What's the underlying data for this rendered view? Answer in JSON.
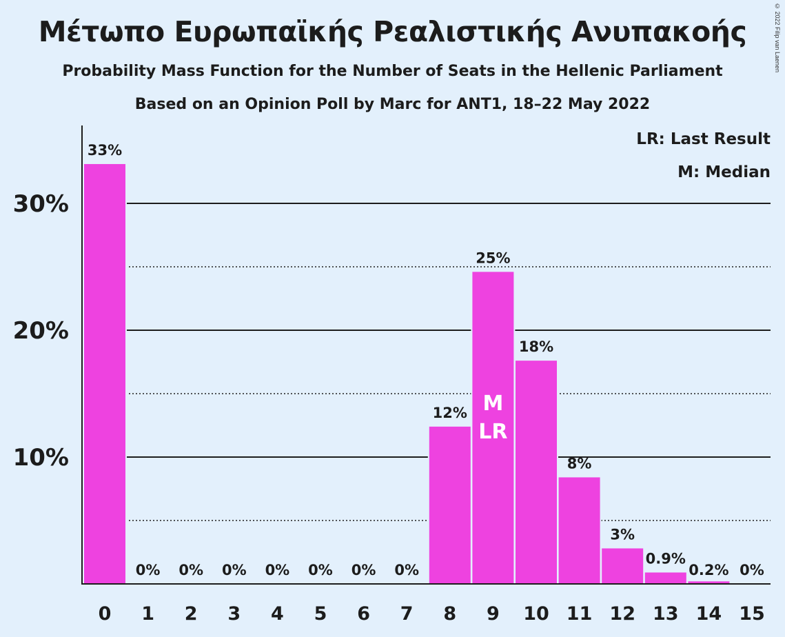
{
  "title": "Μέτωπο Ευρωπαϊκής Ρεαλιστικής Ανυπακοής",
  "subtitle": "Probability Mass Function for the Number of Seats in the Hellenic Parliament",
  "subtitle2": "Based on an Opinion Poll by Marc for ANT1, 18–22 May 2022",
  "copyright": "© 2022 Filip van Laenen",
  "legend": {
    "last_result": "LR: Last Result",
    "median": "M: Median"
  },
  "colors": {
    "bar": "#ee42e0",
    "background": "#e3f0fc",
    "text": "#1c1c1c"
  },
  "chart_data": {
    "type": "bar",
    "categories": [
      "0",
      "1",
      "2",
      "3",
      "4",
      "5",
      "6",
      "7",
      "8",
      "9",
      "10",
      "11",
      "12",
      "13",
      "14",
      "15"
    ],
    "values": [
      33.1,
      0,
      0,
      0,
      0,
      0,
      0,
      0,
      12.4,
      24.6,
      17.6,
      8.4,
      2.8,
      0.9,
      0.2,
      0
    ],
    "data_labels": [
      "33%",
      "0%",
      "0%",
      "0%",
      "0%",
      "0%",
      "0%",
      "0%",
      "12%",
      "25%",
      "18%",
      "8%",
      "3%",
      "0.9%",
      "0.2%",
      "0%"
    ],
    "y_ticks": [
      {
        "value": 10,
        "label": "10%"
      },
      {
        "value": 20,
        "label": "20%"
      },
      {
        "value": 30,
        "label": "30%"
      }
    ],
    "minor_gridlines": [
      5,
      15,
      25
    ],
    "ylim": [
      0,
      35
    ],
    "median_index": 9,
    "last_result_index": 9,
    "median_marker": "M",
    "last_result_marker": "LR",
    "legend_position": "top-right"
  }
}
